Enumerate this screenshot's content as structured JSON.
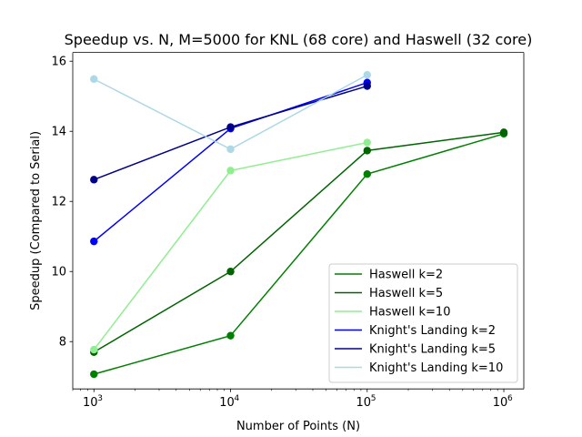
{
  "chart_data": {
    "type": "line",
    "title": "Speedup vs. N, M=5000 for KNL (68 core) and Haswell (32 core)",
    "xlabel": "Number of Points (N)",
    "ylabel": "Speedup (Compared to Serial)",
    "x_scale": "log",
    "xlim": [
      700,
      1400000
    ],
    "ylim": [
      6.65,
      16.25
    ],
    "x_ticks": [
      {
        "value": 1000,
        "base": "10",
        "exp": "3"
      },
      {
        "value": 10000,
        "base": "10",
        "exp": "4"
      },
      {
        "value": 100000,
        "base": "10",
        "exp": "5"
      },
      {
        "value": 1000000,
        "base": "10",
        "exp": "6"
      }
    ],
    "y_ticks": [
      {
        "value": 8,
        "label": "8"
      },
      {
        "value": 10,
        "label": "10"
      },
      {
        "value": 12,
        "label": "12"
      },
      {
        "value": 14,
        "label": "14"
      },
      {
        "value": 16,
        "label": "16"
      }
    ],
    "grid": false,
    "legend_position": "lower-right",
    "series": [
      {
        "name": "Haswell k=2",
        "color": "#008000",
        "x": [
          1000,
          10000,
          100000,
          1000000
        ],
        "values": [
          7.07,
          8.17,
          12.78,
          13.93
        ]
      },
      {
        "name": "Haswell k=5",
        "color": "#006400",
        "x": [
          1000,
          10000,
          100000,
          1000000
        ],
        "values": [
          7.7,
          10.0,
          13.45,
          13.97
        ]
      },
      {
        "name": "Haswell k=10",
        "color": "#90ee90",
        "x": [
          1000,
          10000,
          100000
        ],
        "values": [
          7.77,
          12.88,
          13.68
        ]
      },
      {
        "name": "Knight's Landing k=2",
        "color": "#0000ff",
        "x": [
          1000,
          10000,
          100000
        ],
        "values": [
          10.86,
          14.08,
          15.39
        ]
      },
      {
        "name": "Knight's Landing k=5",
        "color": "#00008b",
        "x": [
          1000,
          10000,
          100000
        ],
        "values": [
          12.62,
          14.12,
          15.29
        ]
      },
      {
        "name": "Knight's Landing k=10",
        "color": "#add8e6",
        "x": [
          1000,
          10000,
          100000
        ],
        "values": [
          15.49,
          13.49,
          15.61
        ]
      }
    ]
  }
}
